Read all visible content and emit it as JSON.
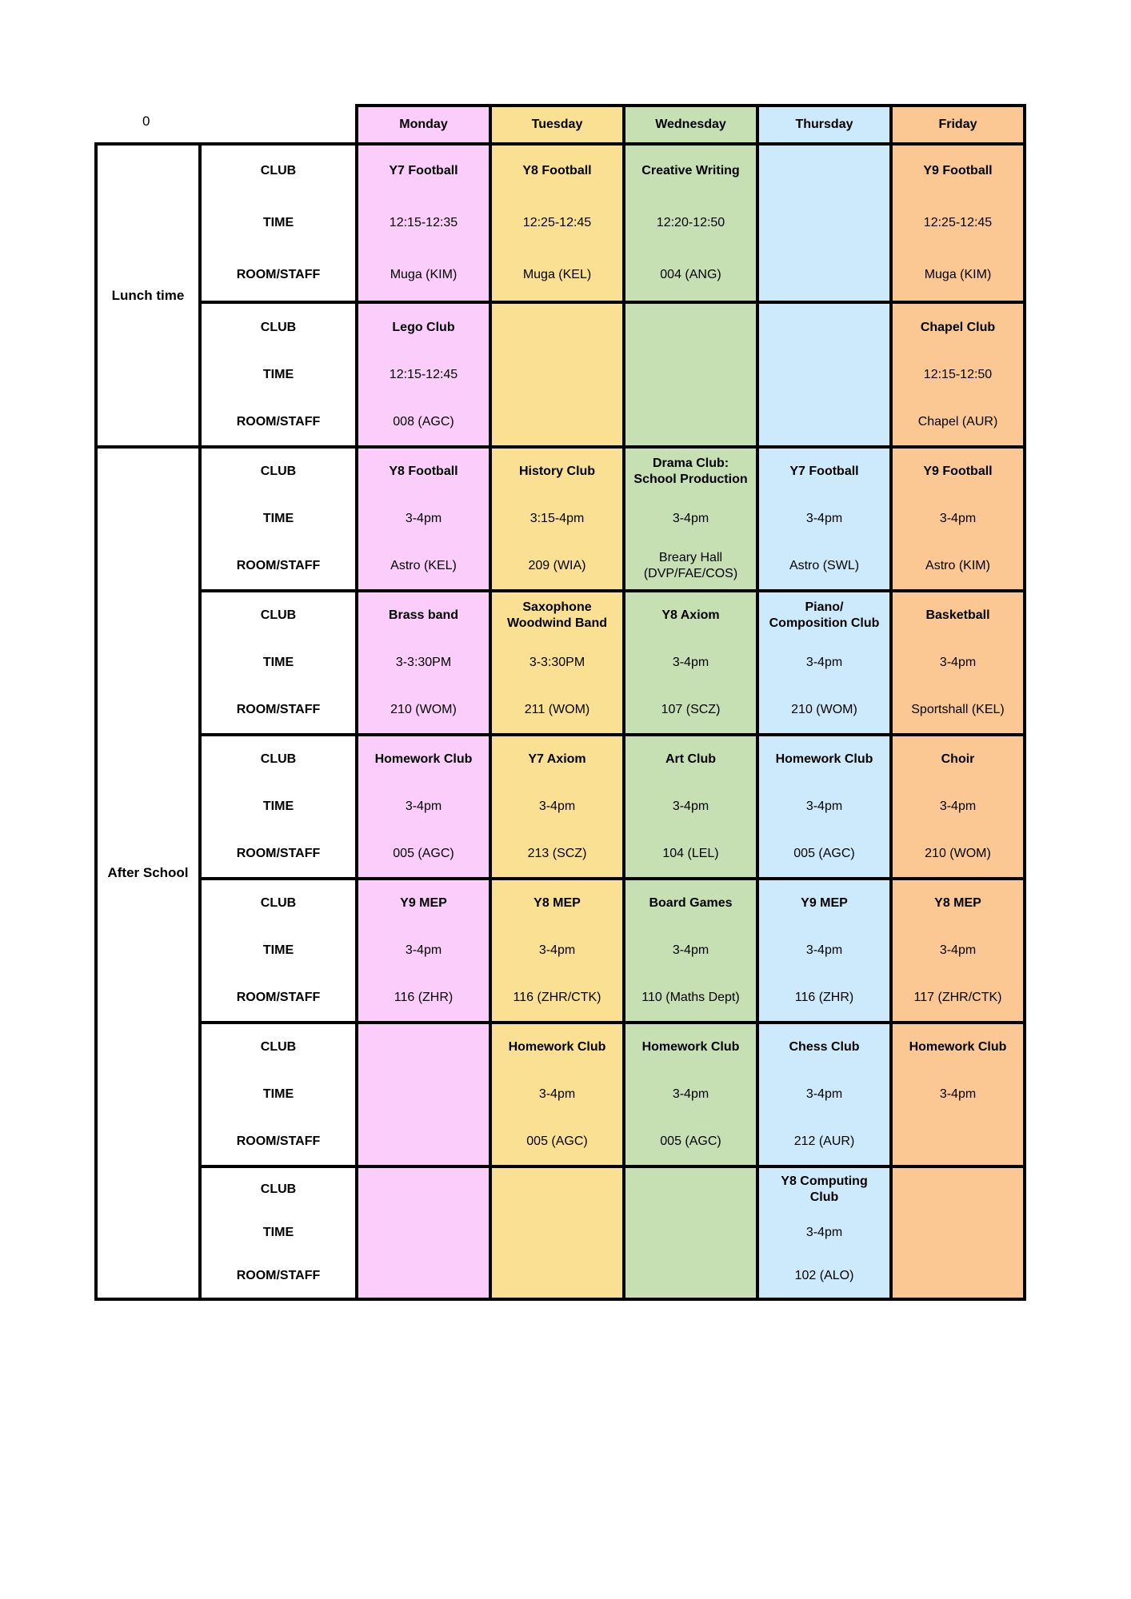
{
  "corner_label": "0",
  "colors": {
    "monday": "#FACDFA",
    "tuesday": "#FAE092",
    "wednesday": "#C6E0B4",
    "thursday": "#CDEAFC",
    "friday": "#FBC894",
    "grid_border": "#000000",
    "page_background": "#FFFFFF"
  },
  "days": [
    {
      "label": "Monday"
    },
    {
      "label": "Tuesday"
    },
    {
      "label": "Wednesday"
    },
    {
      "label": "Thursday"
    },
    {
      "label": "Friday"
    }
  ],
  "row_labels": {
    "club": "CLUB",
    "time": "TIME",
    "room": "ROOM/STAFF"
  },
  "sections": [
    {
      "label": "Lunch time",
      "blocks": [
        {
          "cells": [
            {
              "club": "Y7 Football",
              "time": "12:15-12:35",
              "room": "Muga (KIM)"
            },
            {
              "club": "Y8 Football",
              "time": "12:25-12:45",
              "room": "Muga (KEL)"
            },
            {
              "club": "Creative Writing",
              "time": "12:20-12:50",
              "room": "004 (ANG)"
            },
            {
              "club": "",
              "time": "",
              "room": ""
            },
            {
              "club": "Y9 Football",
              "time": "12:25-12:45",
              "room": "Muga (KIM)"
            }
          ]
        },
        {
          "cells": [
            {
              "club": "Lego Club",
              "time": "12:15-12:45",
              "room": "008 (AGC)"
            },
            {
              "club": "",
              "time": "",
              "room": ""
            },
            {
              "club": "",
              "time": "",
              "room": ""
            },
            {
              "club": "",
              "time": "",
              "room": ""
            },
            {
              "club": "Chapel Club",
              "time": "12:15-12:50",
              "room": "Chapel (AUR)"
            }
          ]
        }
      ]
    },
    {
      "label": "After School",
      "blocks": [
        {
          "cells": [
            {
              "club": "Y8 Football",
              "time": "3-4pm",
              "room": "Astro (KEL)"
            },
            {
              "club": "History Club",
              "time": "3:15-4pm",
              "room": "209 (WIA)"
            },
            {
              "club": "Drama Club:\nSchool Production",
              "time": "3-4pm",
              "room": "Breary Hall\n(DVP/FAE/COS)"
            },
            {
              "club": "Y7 Football",
              "time": "3-4pm",
              "room": "Astro (SWL)"
            },
            {
              "club": "Y9 Football",
              "time": "3-4pm",
              "room": "Astro (KIM)"
            }
          ]
        },
        {
          "cells": [
            {
              "club": "Brass band",
              "time": "3-3:30PM",
              "room": "210 (WOM)"
            },
            {
              "club": "Saxophone\nWoodwind Band",
              "time": "3-3:30PM",
              "room": "211 (WOM)"
            },
            {
              "club": "Y8 Axiom",
              "time": "3-4pm",
              "room": "107 (SCZ)"
            },
            {
              "club": "Piano/\nComposition Club",
              "time": "3-4pm",
              "room": "210 (WOM)"
            },
            {
              "club": "Basketball",
              "time": "3-4pm",
              "room": "Sportshall (KEL)"
            }
          ]
        },
        {
          "cells": [
            {
              "club": "Homework Club",
              "time": "3-4pm",
              "room": "005 (AGC)"
            },
            {
              "club": "Y7 Axiom",
              "time": "3-4pm",
              "room": "213 (SCZ)"
            },
            {
              "club": "Art Club",
              "time": "3-4pm",
              "room": "104 (LEL)"
            },
            {
              "club": "Homework Club",
              "time": "3-4pm",
              "room": "005 (AGC)"
            },
            {
              "club": "Choir",
              "time": "3-4pm",
              "room": "210 (WOM)"
            }
          ]
        },
        {
          "cells": [
            {
              "club": "Y9 MEP",
              "time": "3-4pm",
              "room": "116 (ZHR)"
            },
            {
              "club": "Y8 MEP",
              "time": "3-4pm",
              "room": "116 (ZHR/CTK)"
            },
            {
              "club": "Board Games",
              "time": "3-4pm",
              "room": "110 (Maths Dept)"
            },
            {
              "club": "Y9 MEP",
              "time": "3-4pm",
              "room": "116 (ZHR)"
            },
            {
              "club": "Y8 MEP",
              "time": "3-4pm",
              "room": "117 (ZHR/CTK)"
            }
          ]
        },
        {
          "cells": [
            {
              "club": "",
              "time": "",
              "room": ""
            },
            {
              "club": "Homework Club",
              "time": "3-4pm",
              "room": "005 (AGC)"
            },
            {
              "club": "Homework Club",
              "time": "3-4pm",
              "room": "005 (AGC)"
            },
            {
              "club": "Chess Club",
              "time": "3-4pm",
              "room": "212 (AUR)"
            },
            {
              "club": "Homework Club",
              "time": "3-4pm",
              "room": ""
            }
          ]
        },
        {
          "cells": [
            {
              "club": "",
              "time": "",
              "room": ""
            },
            {
              "club": "",
              "time": "",
              "room": ""
            },
            {
              "club": "",
              "time": "",
              "room": ""
            },
            {
              "club": "Y8 Computing\nClub",
              "time": "3-4pm",
              "room": "102 (ALO)"
            },
            {
              "club": "",
              "time": "",
              "room": ""
            }
          ]
        }
      ]
    }
  ]
}
